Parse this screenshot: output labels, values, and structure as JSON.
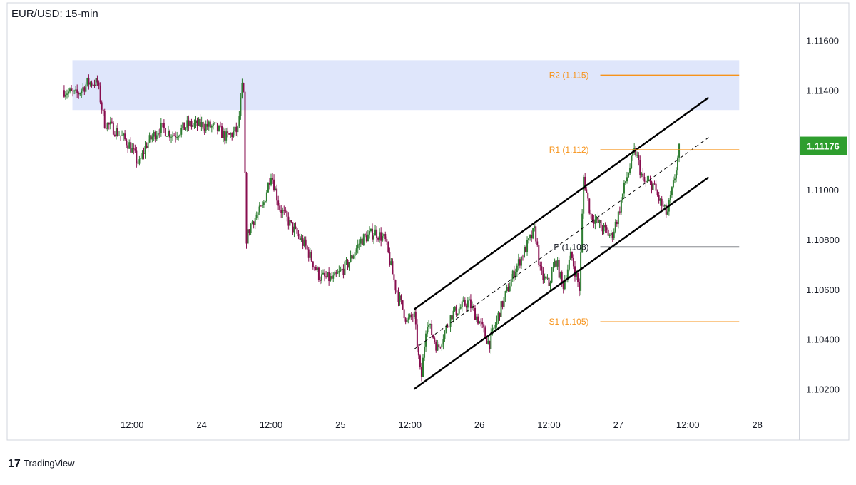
{
  "chart_data": {
    "type": "candlestick",
    "title": "EUR/USD: 15-min",
    "ylim": [
      1.1013,
      1.1175
    ],
    "y_ticks": [
      "1.11600",
      "1.11400",
      "1.11200",
      "1.11000",
      "1.10800",
      "1.10600",
      "1.10400",
      "1.10200"
    ],
    "y_tick_values": [
      1.116,
      1.114,
      1.112,
      1.11,
      1.108,
      1.106,
      1.104,
      1.102
    ],
    "x_ticks": [
      "12:00",
      "24",
      "12:00",
      "25",
      "12:00",
      "26",
      "12:00",
      "27",
      "12:00",
      "28"
    ],
    "x_tick_values": [
      0.5,
      1.0,
      1.5,
      2.0,
      2.5,
      3.0,
      3.5,
      4.0,
      4.5,
      5.0
    ],
    "x_axis_unit": "days, 0 = start of Jun 23",
    "current_price": {
      "label": "1.11176",
      "value": 1.11176
    },
    "resistance_zone": {
      "x": [
        0.07,
        4.87
      ],
      "y": [
        1.1132,
        1.1152
      ]
    },
    "levels": [
      {
        "label": "R2 (1.115)",
        "value": 1.1146,
        "x": [
          3.87,
          4.87
        ],
        "color": "#f7931a"
      },
      {
        "label": "R1 (1.112)",
        "value": 1.1116,
        "x": [
          3.87,
          4.87
        ],
        "color": "#f7931a"
      },
      {
        "label": "P (1.108)",
        "value": 1.1077,
        "x": [
          3.87,
          4.87
        ],
        "color": "#131722"
      },
      {
        "label": "S1 (1.105)",
        "value": 1.1047,
        "x": [
          3.87,
          4.87
        ],
        "color": "#f7931a"
      }
    ],
    "channel": {
      "upper": [
        [
          2.53,
          1.1052
        ],
        [
          4.65,
          1.1137
        ]
      ],
      "lower": [
        [
          2.53,
          1.102
        ],
        [
          4.65,
          1.1105
        ]
      ],
      "mid": [
        [
          2.53,
          1.1036
        ],
        [
          4.65,
          1.1121
        ]
      ]
    },
    "path": [
      [
        0.0,
        1.114
      ],
      [
        0.1,
        1.1138
      ],
      [
        0.18,
        1.1143
      ],
      [
        0.25,
        1.1143
      ],
      [
        0.3,
        1.1127
      ],
      [
        0.38,
        1.1124
      ],
      [
        0.48,
        1.1118
      ],
      [
        0.55,
        1.111
      ],
      [
        0.6,
        1.1118
      ],
      [
        0.7,
        1.1125
      ],
      [
        0.8,
        1.1122
      ],
      [
        0.9,
        1.1126
      ],
      [
        1.0,
        1.1126
      ],
      [
        1.1,
        1.1125
      ],
      [
        1.18,
        1.1121
      ],
      [
        1.26,
        1.1124
      ],
      [
        1.3,
        1.1145
      ],
      [
        1.32,
        1.108
      ],
      [
        1.36,
        1.1087
      ],
      [
        1.44,
        1.1093
      ],
      [
        1.5,
        1.1107
      ],
      [
        1.56,
        1.1093
      ],
      [
        1.65,
        1.1085
      ],
      [
        1.75,
        1.1077
      ],
      [
        1.85,
        1.1065
      ],
      [
        1.95,
        1.1064
      ],
      [
        2.05,
        1.107
      ],
      [
        2.15,
        1.108
      ],
      [
        2.25,
        1.1083
      ],
      [
        2.32,
        1.108
      ],
      [
        2.4,
        1.106
      ],
      [
        2.48,
        1.1047
      ],
      [
        2.53,
        1.105
      ],
      [
        2.58,
        1.1023
      ],
      [
        2.62,
        1.1048
      ],
      [
        2.7,
        1.1036
      ],
      [
        2.8,
        1.105
      ],
      [
        2.92,
        1.1055
      ],
      [
        3.0,
        1.1047
      ],
      [
        3.07,
        1.1038
      ],
      [
        3.15,
        1.1052
      ],
      [
        3.25,
        1.1067
      ],
      [
        3.32,
        1.1075
      ],
      [
        3.4,
        1.1084
      ],
      [
        3.44,
        1.1066
      ],
      [
        3.5,
        1.1062
      ],
      [
        3.55,
        1.1072
      ],
      [
        3.6,
        1.1061
      ],
      [
        3.66,
        1.1074
      ],
      [
        3.72,
        1.106
      ],
      [
        3.75,
        1.1105
      ],
      [
        3.8,
        1.109
      ],
      [
        3.88,
        1.1085
      ],
      [
        3.95,
        1.1081
      ],
      [
        4.0,
        1.109
      ],
      [
        4.05,
        1.1103
      ],
      [
        4.12,
        1.1116
      ],
      [
        4.18,
        1.1103
      ],
      [
        4.25,
        1.1102
      ],
      [
        4.3,
        1.1095
      ],
      [
        4.35,
        1.109
      ],
      [
        4.4,
        1.1103
      ],
      [
        4.44,
        1.1117
      ]
    ],
    "up_color": "#2e7d32",
    "down_color": "#880e4f",
    "zone_color": "#dfe6fb"
  },
  "branding": {
    "label": "TradingView"
  }
}
